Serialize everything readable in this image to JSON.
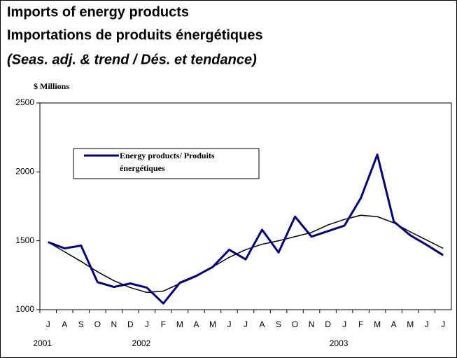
{
  "chart_data": {
    "type": "line",
    "title": "Imports of energy products",
    "title_fr": "Importations de produits énergétiques",
    "subtitle": "(Seas. adj. & trend / Dés. et tendance)",
    "y_label": "$ Millions",
    "categories": [
      "J",
      "A",
      "S",
      "O",
      "N",
      "D",
      "J",
      "F",
      "M",
      "A",
      "M",
      "J",
      "J",
      "A",
      "S",
      "O",
      "N",
      "D",
      "J",
      "F",
      "M",
      "A",
      "M",
      "J",
      "J"
    ],
    "year_labels": [
      "2001",
      null,
      null,
      null,
      null,
      null,
      "2002",
      null,
      null,
      null,
      null,
      null,
      null,
      null,
      null,
      null,
      null,
      null,
      "2003",
      null,
      null,
      null,
      null,
      null,
      null
    ],
    "series": [
      {
        "name": "Energy products/ Produits énergétiques",
        "color": "#000080",
        "values": [
          1490,
          1445,
          1465,
          1200,
          1165,
          1190,
          1160,
          1045,
          1195,
          1245,
          1310,
          1435,
          1365,
          1580,
          1415,
          1675,
          1530,
          1570,
          1610,
          1810,
          2125,
          1640,
          1540,
          1470,
          1395
        ]
      },
      {
        "color": "#000000",
        "values": [
          1490,
          1420,
          1350,
          1275,
          1210,
          1160,
          1125,
          1135,
          1190,
          1240,
          1310,
          1380,
          1435,
          1475,
          1500,
          1530,
          1560,
          1615,
          1655,
          1685,
          1675,
          1630,
          1565,
          1505,
          1445
        ]
      }
    ],
    "ylim": [
      1000,
      2500
    ],
    "yticks": [
      1000,
      1500,
      2000,
      2500
    ],
    "grid": false
  }
}
